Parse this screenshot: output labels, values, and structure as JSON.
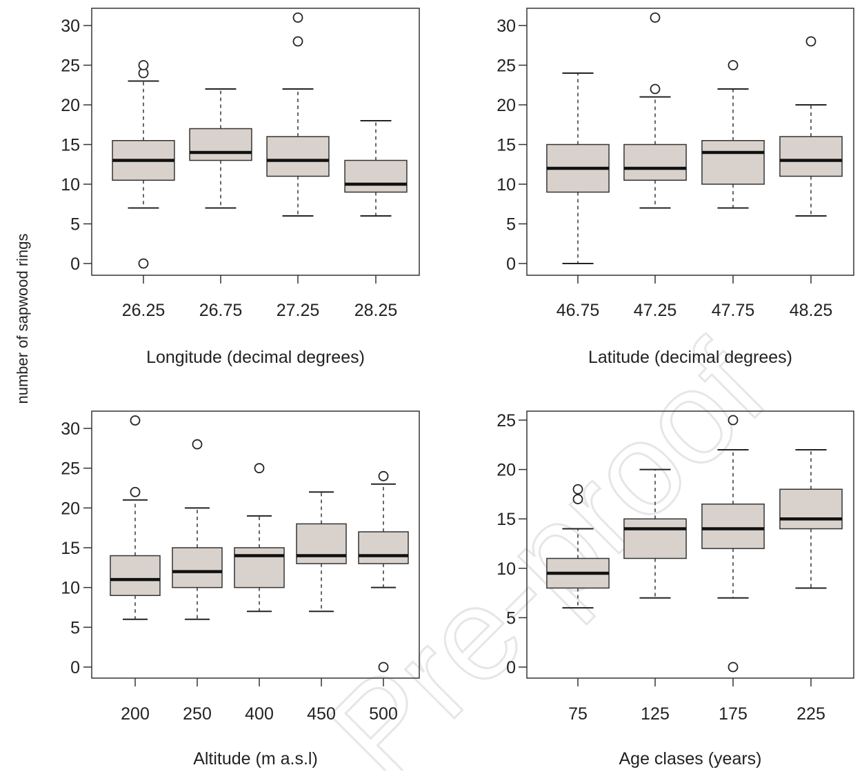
{
  "ylabel": "number of sapwood rings",
  "watermark": "Pre-proof",
  "style": {
    "box_fill": "#d9d2cc",
    "box_stroke": "#333333",
    "median_color": "#111111",
    "outlier_stroke": "#222222"
  },
  "chart_data": [
    {
      "type": "boxplot",
      "xlabel": "Longitude (decimal degrees)",
      "ylabel": "number of sapwood rings",
      "ylim": [
        0,
        30
      ],
      "yticks": [
        0,
        5,
        10,
        15,
        20,
        25,
        30
      ],
      "categories": [
        "26.25",
        "26.75",
        "27.25",
        "28.25"
      ],
      "boxes": [
        {
          "min": 7,
          "q1": 10.5,
          "median": 13,
          "q3": 15.5,
          "max": 23,
          "outliers": [
            0,
            24,
            25
          ]
        },
        {
          "min": 7,
          "q1": 13,
          "median": 14,
          "q3": 17,
          "max": 22,
          "outliers": []
        },
        {
          "min": 6,
          "q1": 11,
          "median": 13,
          "q3": 16,
          "max": 22,
          "outliers": [
            28,
            31
          ]
        },
        {
          "min": 6,
          "q1": 9,
          "median": 10,
          "q3": 13,
          "max": 18,
          "outliers": []
        }
      ]
    },
    {
      "type": "boxplot",
      "xlabel": "Latitude (decimal degrees)",
      "ylim": [
        0,
        30
      ],
      "yticks": [
        0,
        5,
        10,
        15,
        20,
        25,
        30
      ],
      "categories": [
        "46.75",
        "47.25",
        "47.75",
        "48.25"
      ],
      "boxes": [
        {
          "min": 0,
          "q1": 9,
          "median": 12,
          "q3": 15,
          "max": 24,
          "outliers": []
        },
        {
          "min": 7,
          "q1": 10.5,
          "median": 12,
          "q3": 15,
          "max": 21,
          "outliers": [
            22,
            31
          ]
        },
        {
          "min": 7,
          "q1": 10,
          "median": 14,
          "q3": 15.5,
          "max": 22,
          "outliers": [
            25
          ]
        },
        {
          "min": 6,
          "q1": 11,
          "median": 13,
          "q3": 16,
          "max": 20,
          "outliers": [
            28
          ]
        }
      ]
    },
    {
      "type": "boxplot",
      "xlabel": "Altitude (m a.s.l)",
      "ylim": [
        0,
        30
      ],
      "yticks": [
        0,
        5,
        10,
        15,
        20,
        25,
        30
      ],
      "categories": [
        "200",
        "250",
        "400",
        "450",
        "500"
      ],
      "boxes": [
        {
          "min": 6,
          "q1": 9,
          "median": 11,
          "q3": 14,
          "max": 21,
          "outliers": [
            22,
            31
          ]
        },
        {
          "min": 6,
          "q1": 10,
          "median": 12,
          "q3": 15,
          "max": 20,
          "outliers": [
            28
          ]
        },
        {
          "min": 7,
          "q1": 10,
          "median": 14,
          "q3": 15,
          "max": 19,
          "outliers": [
            25
          ]
        },
        {
          "min": 7,
          "q1": 13,
          "median": 14,
          "q3": 18,
          "max": 22,
          "outliers": []
        },
        {
          "min": 10,
          "q1": 13,
          "median": 14,
          "q3": 17,
          "max": 23,
          "outliers": [
            0,
            24
          ]
        }
      ]
    },
    {
      "type": "boxplot",
      "xlabel": "Age clases (years)",
      "ylim": [
        0,
        25
      ],
      "yticks": [
        0,
        5,
        10,
        15,
        20,
        25
      ],
      "categories": [
        "75",
        "125",
        "175",
        "225"
      ],
      "boxes": [
        {
          "min": 6,
          "q1": 8,
          "median": 9.5,
          "q3": 11,
          "max": 14,
          "outliers": [
            17,
            18
          ]
        },
        {
          "min": 7,
          "q1": 11,
          "median": 14,
          "q3": 15,
          "max": 20,
          "outliers": []
        },
        {
          "min": 7,
          "q1": 12,
          "median": 14,
          "q3": 16.5,
          "max": 22,
          "outliers": [
            0,
            25
          ]
        },
        {
          "min": 8,
          "q1": 14,
          "median": 15,
          "q3": 18,
          "max": 22,
          "outliers": []
        }
      ]
    }
  ]
}
